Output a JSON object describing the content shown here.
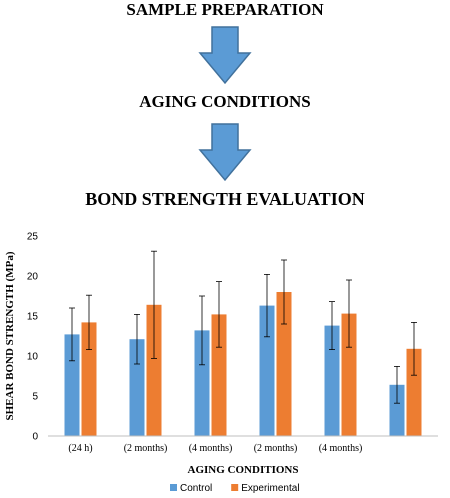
{
  "steps": [
    "SAMPLE PREPARATION",
    "AGING CONDITIONS",
    "BOND STRENGTH EVALUATION"
  ],
  "colors": {
    "arrow": "#5b9bd5",
    "arrow_edge": "#41719c",
    "control": "#5b9bd5",
    "experimental": "#ed7d31"
  },
  "chart_data": {
    "type": "bar",
    "title": "",
    "xlabel": "AGING CONDITIONS",
    "ylabel": "SHEAR BOND STRENGTH (MPa)",
    "ylim": [
      0,
      25
    ],
    "yticks": [
      0,
      5,
      10,
      15,
      20,
      25
    ],
    "grid": false,
    "legend": "bottom",
    "categories": [
      "(24 h)",
      "(2 months)",
      "(4 months)",
      "(2 months)",
      "(4 months)",
      ""
    ],
    "series": [
      {
        "name": "Control",
        "color": "#5b9bd5",
        "values": [
          12.7,
          12.1,
          13.2,
          16.3,
          13.8,
          6.4
        ],
        "error": [
          3.3,
          3.1,
          4.3,
          3.9,
          3.0,
          2.3
        ]
      },
      {
        "name": "Experimental",
        "color": "#ed7d31",
        "values": [
          14.2,
          16.4,
          15.2,
          18.0,
          15.3,
          10.9
        ],
        "error": [
          3.4,
          6.7,
          4.1,
          4.0,
          4.2,
          3.3
        ]
      }
    ]
  }
}
